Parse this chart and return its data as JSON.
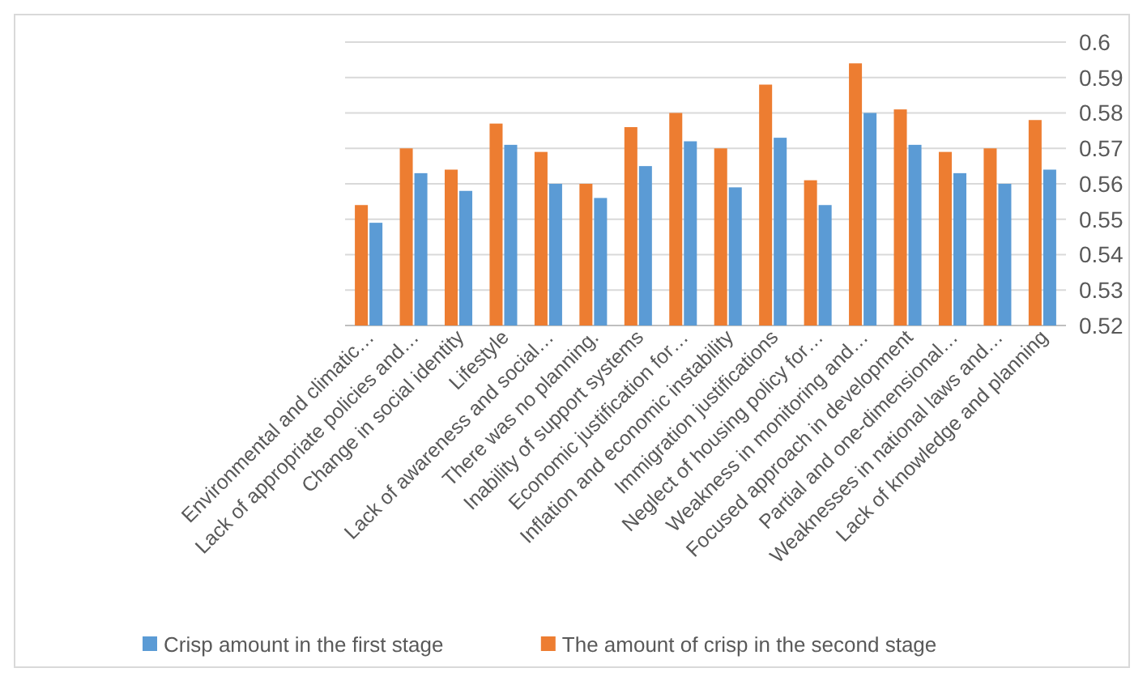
{
  "chart_data": {
    "type": "bar",
    "categories": [
      "Environmental and climatic…",
      "Lack of appropriate policies and…",
      "Change in social identity",
      "Lifestyle",
      "Lack of awareness and social…",
      "There was no planning.",
      "Inability of support systems",
      "Economic justification for…",
      "Inflation and economic instability",
      "Immigration justifications",
      "Neglect of housing policy for…",
      "Weakness in monitoring and…",
      "Focused approach in development",
      "Partial and one-dimensional…",
      "Weaknesses in national laws and…",
      "Lack of knowledge and planning"
    ],
    "series": [
      {
        "name": "Crisp amount in the first stage",
        "color": "#5b9bd5",
        "values": [
          0.549,
          0.563,
          0.558,
          0.571,
          0.56,
          0.556,
          0.565,
          0.572,
          0.559,
          0.573,
          0.554,
          0.58,
          0.571,
          0.563,
          0.56,
          0.564
        ]
      },
      {
        "name": "The amount of crisp in the second stage",
        "color": "#ed7d31",
        "values": [
          0.554,
          0.57,
          0.564,
          0.577,
          0.569,
          0.56,
          0.576,
          0.58,
          0.57,
          0.588,
          0.561,
          0.594,
          0.581,
          0.569,
          0.57,
          0.578
        ]
      }
    ],
    "ylim": [
      0.52,
      0.6
    ],
    "yticks": [
      0.52,
      0.53,
      0.54,
      0.55,
      0.56,
      0.57,
      0.58,
      0.59,
      0.6
    ],
    "grid": "y",
    "legend": "bottom"
  }
}
